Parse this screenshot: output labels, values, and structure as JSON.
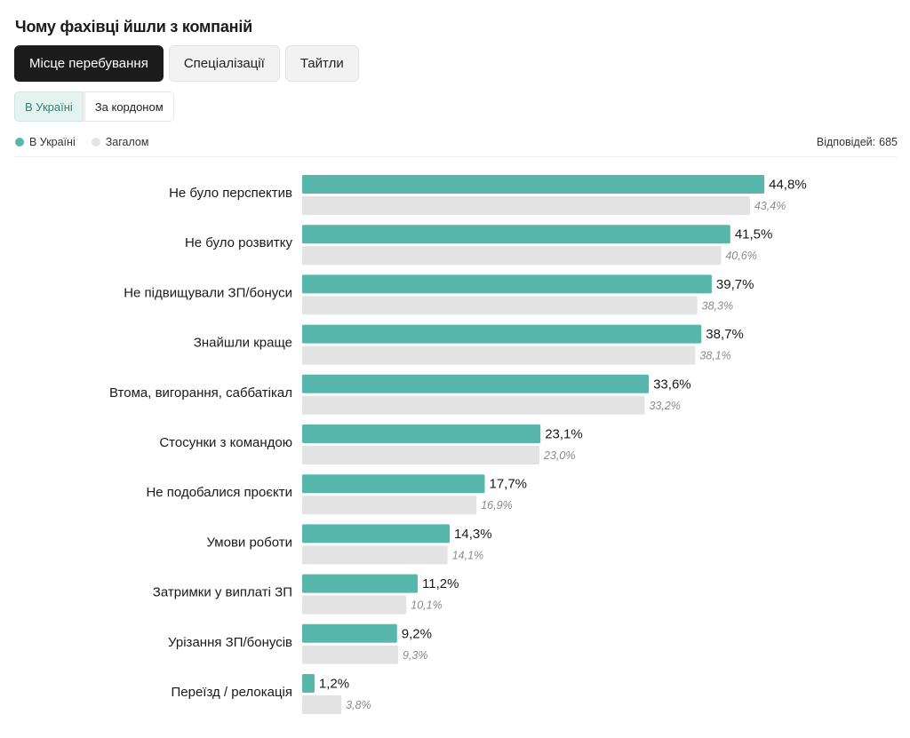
{
  "title": "Чому фахівці йшли з компаній",
  "tabs": [
    {
      "label": "Місце перебування",
      "active": true
    },
    {
      "label": "Спеціалізації",
      "active": false
    },
    {
      "label": "Тайтли",
      "active": false
    }
  ],
  "subtabs": [
    {
      "label": "В Україні",
      "active": true
    },
    {
      "label": "За кордоном",
      "active": false
    }
  ],
  "legend": [
    {
      "label": "В Україні",
      "color": "#58b7ad"
    },
    {
      "label": "Загалом",
      "color": "#e3e3e3"
    }
  ],
  "responses": {
    "label": "Відповідей:",
    "value": "685"
  },
  "chart_data": {
    "type": "bar",
    "orientation": "horizontal",
    "categories": [
      "Не було перспектив",
      "Не було розвитку",
      "Не підвищували ЗП/бонуси",
      "Знайшли краще",
      "Втома, вигорання, саббатікал",
      "Стосунки з командою",
      "Не подобалися проєкти",
      "Умови роботи",
      "Затримки у виплаті ЗП",
      "Урізання ЗП/бонусів",
      "Переїзд / релокація"
    ],
    "series": [
      {
        "name": "В Україні",
        "color": "#58b7ad",
        "values": [
          44.8,
          41.5,
          39.7,
          38.7,
          33.6,
          23.1,
          17.7,
          14.3,
          11.2,
          9.2,
          1.2
        ],
        "labels": [
          "44,8%",
          "41,5%",
          "39,7%",
          "38,7%",
          "33,6%",
          "23,1%",
          "17,7%",
          "14,3%",
          "11,2%",
          "9,2%",
          "1,2%"
        ]
      },
      {
        "name": "Загалом",
        "color": "#e3e3e3",
        "values": [
          43.4,
          40.6,
          38.3,
          38.1,
          33.2,
          23.0,
          16.9,
          14.1,
          10.1,
          9.3,
          3.8
        ],
        "labels": [
          "43,4%",
          "40,6%",
          "38,3%",
          "38,1%",
          "33,2%",
          "23,0%",
          "16,9%",
          "14,1%",
          "10,1%",
          "9,3%",
          "3,8%"
        ]
      }
    ],
    "unit": "%",
    "xlim": [
      0,
      45
    ],
    "grid": false,
    "legend_position": "top-left"
  }
}
